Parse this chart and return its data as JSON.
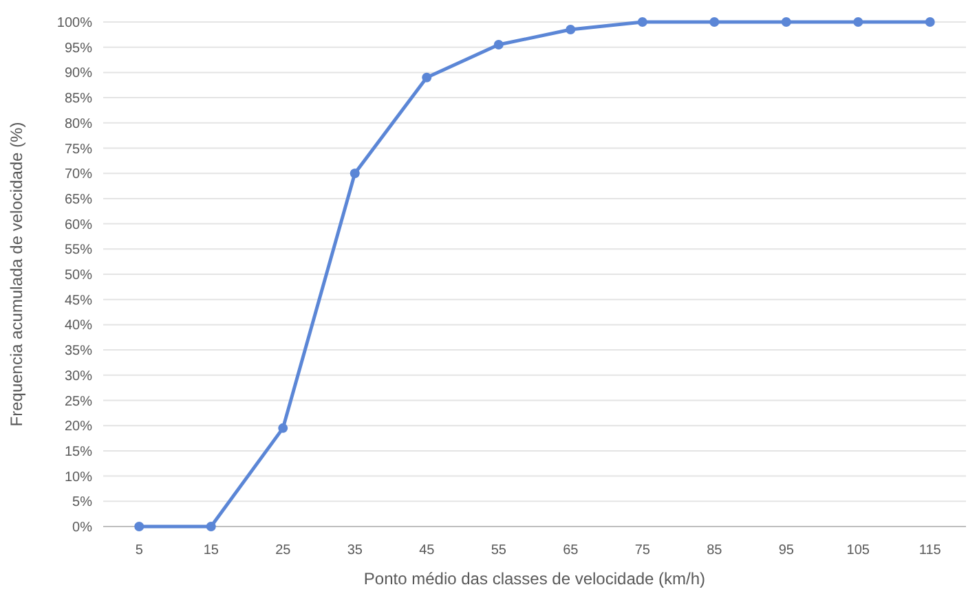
{
  "chart_data": {
    "type": "line",
    "xlabel": "Ponto médio das classes de velocidade (km/h)",
    "ylabel": "Frequencia acumulada de velocidade (%)",
    "categories": [
      "5",
      "15",
      "25",
      "35",
      "45",
      "55",
      "65",
      "75",
      "85",
      "95",
      "105",
      "115"
    ],
    "series": [
      {
        "color": "#5b86d6",
        "values": [
          0,
          0,
          19.5,
          70,
          89,
          95.5,
          98.5,
          100,
          100,
          100,
          100,
          100
        ]
      }
    ],
    "ylim": [
      0,
      100
    ],
    "yticks": [
      {
        "value": 0,
        "label": "0%"
      },
      {
        "value": 5,
        "label": "5%"
      },
      {
        "value": 10,
        "label": "10%"
      },
      {
        "value": 15,
        "label": "15%"
      },
      {
        "value": 20,
        "label": "20%"
      },
      {
        "value": 25,
        "label": "25%"
      },
      {
        "value": 30,
        "label": "30%"
      },
      {
        "value": 35,
        "label": "35%"
      },
      {
        "value": 40,
        "label": "40%"
      },
      {
        "value": 45,
        "label": "45%"
      },
      {
        "value": 50,
        "label": "50%"
      },
      {
        "value": 55,
        "label": "55%"
      },
      {
        "value": 60,
        "label": "60%"
      },
      {
        "value": 65,
        "label": "65%"
      },
      {
        "value": 70,
        "label": "70%"
      },
      {
        "value": 75,
        "label": "75%"
      },
      {
        "value": 80,
        "label": "80%"
      },
      {
        "value": 85,
        "label": "85%"
      },
      {
        "value": 90,
        "label": "90%"
      },
      {
        "value": 95,
        "label": "95%"
      },
      {
        "value": 100,
        "label": "100%"
      }
    ],
    "grid": "y",
    "marker": "circle",
    "line_style": "solid"
  }
}
